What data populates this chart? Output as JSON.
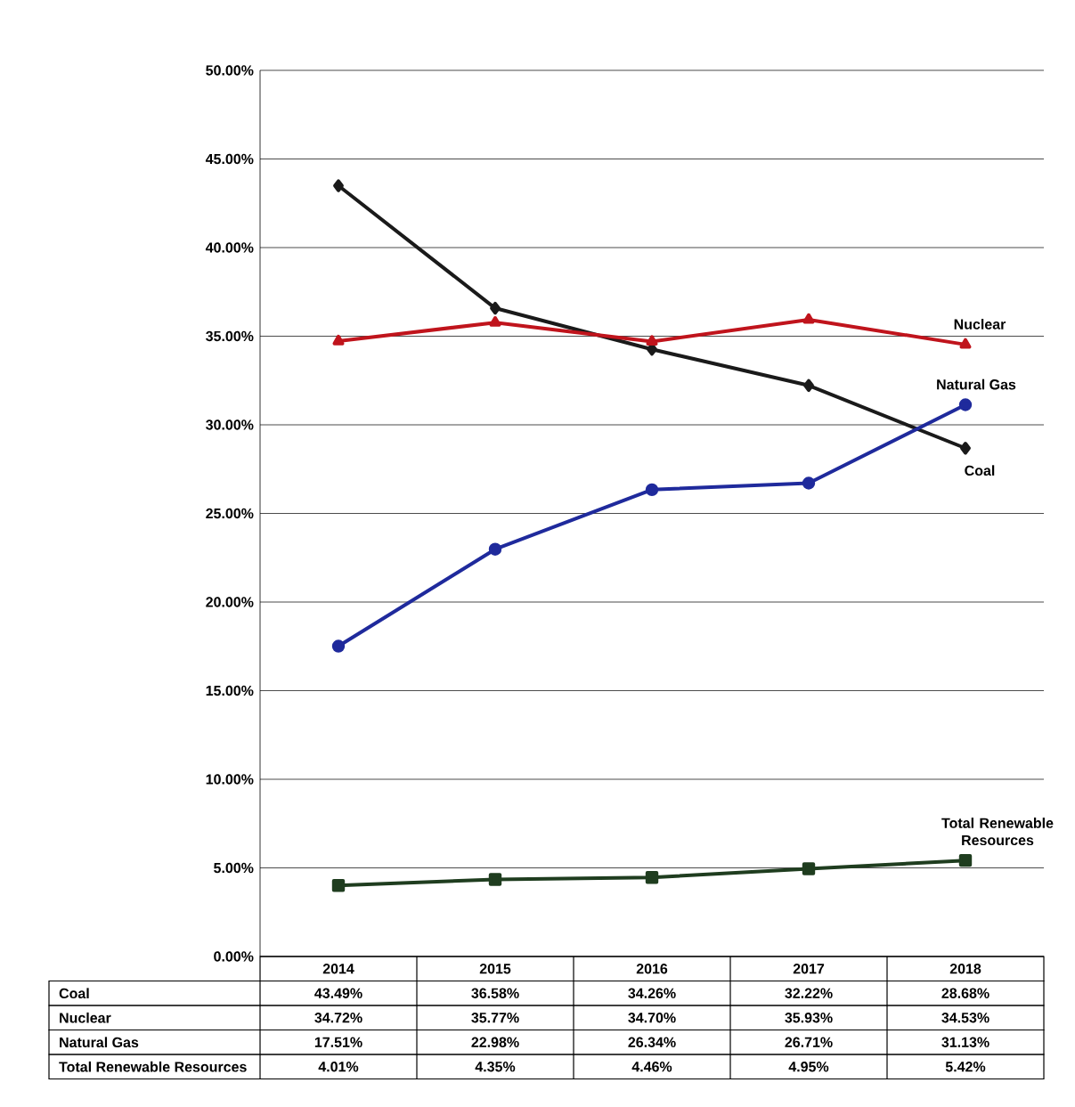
{
  "chart_data": {
    "type": "line",
    "categories": [
      "2014",
      "2015",
      "2016",
      "2017",
      "2018"
    ],
    "ylim": [
      0,
      50
    ],
    "yticks": [
      {
        "value": 0,
        "label": "0.00%"
      },
      {
        "value": 5,
        "label": "5.00%"
      },
      {
        "value": 10,
        "label": "10.00%"
      },
      {
        "value": 15,
        "label": "15.00%"
      },
      {
        "value": 20,
        "label": "20.00%"
      },
      {
        "value": 25,
        "label": "25.00%"
      },
      {
        "value": 30,
        "label": "30.00%"
      },
      {
        "value": 35,
        "label": "35.00%"
      },
      {
        "value": 40,
        "label": "40.00%"
      },
      {
        "value": 45,
        "label": "45.00%"
      },
      {
        "value": 50,
        "label": "50.00%"
      }
    ],
    "grid": "y",
    "legend": false,
    "line_style": "solid",
    "series": [
      {
        "name": "Coal",
        "color": "#1a1a1a",
        "marker": "diamond",
        "values": [
          43.49,
          36.58,
          34.26,
          32.22,
          28.68
        ],
        "value_labels": [
          "43.49%",
          "36.58%",
          "34.26%",
          "32.22%",
          "28.68%"
        ]
      },
      {
        "name": "Nuclear",
        "color": "#c0141c",
        "marker": "triangle",
        "values": [
          34.72,
          35.77,
          34.7,
          35.93,
          34.53
        ],
        "value_labels": [
          "34.72%",
          "35.77%",
          "34.70%",
          "35.93%",
          "34.53%"
        ]
      },
      {
        "name": "Natural Gas",
        "color": "#1f2a9c",
        "marker": "circle",
        "values": [
          17.51,
          22.98,
          26.34,
          26.71,
          31.13
        ],
        "value_labels": [
          "17.51%",
          "22.98%",
          "26.34%",
          "26.71%",
          "31.13%"
        ]
      },
      {
        "name": "Total Renewable Resources",
        "color": "#1f3d1f",
        "marker": "square",
        "values": [
          4.01,
          4.35,
          4.46,
          4.95,
          5.42
        ],
        "value_labels": [
          "4.01%",
          "4.35%",
          "4.46%",
          "4.95%",
          "5.42%"
        ]
      }
    ]
  }
}
